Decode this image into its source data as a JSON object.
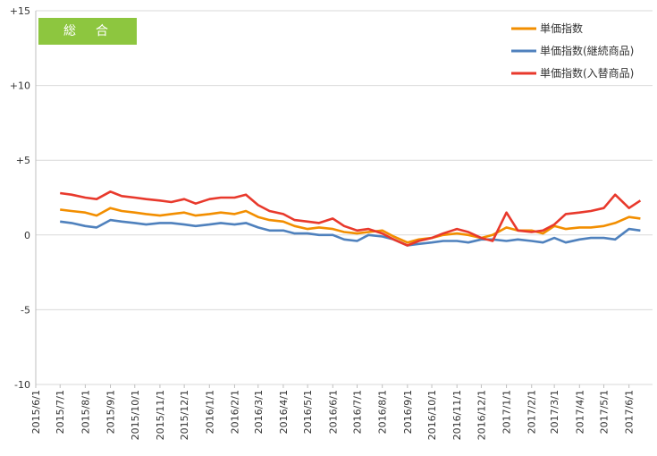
{
  "badge_label": "総　合",
  "chart_data": {
    "type": "line",
    "title": "",
    "xlabel": "",
    "ylabel": "",
    "ylim": [
      -10,
      15
    ],
    "yticks": [
      -10,
      -5,
      0,
      5,
      10,
      15
    ],
    "ytick_labels": [
      "-10",
      "-5",
      "0",
      "+5",
      "+10",
      "+15"
    ],
    "grid": "horizontal",
    "legend_position": "top-right",
    "x_dates": [
      "2015/6/1",
      "2015/7/1",
      "2015/8/1",
      "2015/9/1",
      "2015/10/1",
      "2015/11/1",
      "2015/12/1",
      "2016/1/1",
      "2016/2/1",
      "2016/3/1",
      "2016/4/1",
      "2016/5/1",
      "2016/6/1",
      "2016/7/1",
      "2016/8/1",
      "2016/9/1",
      "2016/10/1",
      "2016/11/1",
      "2016/12/1",
      "2017/1/1",
      "2017/2/1",
      "2017/3/1",
      "2017/4/1",
      "2017/5/1",
      "2017/6/1"
    ],
    "x_tick_labels": [
      "2015/6/1",
      "2015/7/1",
      "2015/8/1",
      "2015/9/1",
      "2015/10/1",
      "2015/11/1",
      "2015/12/1",
      "2016/1/1",
      "2016/2/1",
      "2016/3/1",
      "2016/4/1",
      "2016/5/1",
      "2016/6/1",
      "2016/7/1",
      "2016/8/1",
      "2016/9/1",
      "2016/10/1",
      "2016/11/1",
      "2016/12/1",
      "2017/1/1",
      "2017/2/1",
      "2017/3/1",
      "2017/4/1",
      "2017/5/1",
      "2017/6/1"
    ],
    "series": [
      {
        "name": "単価指数",
        "color": "#f28e00",
        "x": [
          "2015/7/1",
          "2015/7/15",
          "2015/8/1",
          "2015/8/15",
          "2015/9/1",
          "2015/9/15",
          "2015/10/1",
          "2015/10/15",
          "2015/11/1",
          "2015/11/15",
          "2015/12/1",
          "2015/12/15",
          "2016/1/1",
          "2016/1/15",
          "2016/2/1",
          "2016/2/15",
          "2016/3/1",
          "2016/3/15",
          "2016/4/1",
          "2016/4/15",
          "2016/5/1",
          "2016/5/15",
          "2016/6/1",
          "2016/6/15",
          "2016/7/1",
          "2016/7/15",
          "2016/8/1",
          "2016/8/15",
          "2016/9/1",
          "2016/9/15",
          "2016/10/1",
          "2016/10/15",
          "2016/11/1",
          "2016/11/15",
          "2016/12/1",
          "2016/12/15",
          "2017/1/1",
          "2017/1/15",
          "2017/2/1",
          "2017/2/15",
          "2017/3/1",
          "2017/3/15",
          "2017/4/1",
          "2017/4/15",
          "2017/5/1",
          "2017/5/15",
          "2017/6/1",
          "2017/6/15"
        ],
        "values": [
          1.7,
          1.6,
          1.5,
          1.3,
          1.8,
          1.6,
          1.5,
          1.4,
          1.3,
          1.4,
          1.5,
          1.3,
          1.4,
          1.5,
          1.4,
          1.6,
          1.2,
          1.0,
          0.9,
          0.6,
          0.4,
          0.5,
          0.4,
          0.2,
          0.1,
          0.2,
          0.3,
          -0.1,
          -0.5,
          -0.3,
          -0.2,
          0.0,
          0.1,
          0.0,
          -0.2,
          0.0,
          0.5,
          0.3,
          0.3,
          0.1,
          0.6,
          0.4,
          0.5,
          0.5,
          0.6,
          0.8,
          1.2,
          1.1
        ]
      },
      {
        "name": "単価指数(継続商品)",
        "color": "#4f81bd",
        "x": [
          "2015/7/1",
          "2015/7/15",
          "2015/8/1",
          "2015/8/15",
          "2015/9/1",
          "2015/9/15",
          "2015/10/1",
          "2015/10/15",
          "2015/11/1",
          "2015/11/15",
          "2015/12/1",
          "2015/12/15",
          "2016/1/1",
          "2016/1/15",
          "2016/2/1",
          "2016/2/15",
          "2016/3/1",
          "2016/3/15",
          "2016/4/1",
          "2016/4/15",
          "2016/5/1",
          "2016/5/15",
          "2016/6/1",
          "2016/6/15",
          "2016/7/1",
          "2016/7/15",
          "2016/8/1",
          "2016/8/15",
          "2016/9/1",
          "2016/9/15",
          "2016/10/1",
          "2016/10/15",
          "2016/11/1",
          "2016/11/15",
          "2016/12/1",
          "2016/12/15",
          "2017/1/1",
          "2017/1/15",
          "2017/2/1",
          "2017/2/15",
          "2017/3/1",
          "2017/3/15",
          "2017/4/1",
          "2017/4/15",
          "2017/5/1",
          "2017/5/15",
          "2017/6/1",
          "2017/6/15"
        ],
        "values": [
          0.9,
          0.8,
          0.6,
          0.5,
          1.0,
          0.9,
          0.8,
          0.7,
          0.8,
          0.8,
          0.7,
          0.6,
          0.7,
          0.8,
          0.7,
          0.8,
          0.5,
          0.3,
          0.3,
          0.1,
          0.1,
          0.0,
          0.0,
          -0.3,
          -0.4,
          0.0,
          -0.1,
          -0.3,
          -0.7,
          -0.6,
          -0.5,
          -0.4,
          -0.4,
          -0.5,
          -0.3,
          -0.3,
          -0.4,
          -0.3,
          -0.4,
          -0.5,
          -0.2,
          -0.5,
          -0.3,
          -0.2,
          -0.2,
          -0.3,
          0.4,
          0.3
        ]
      },
      {
        "name": "単価指数(入替商品)",
        "color": "#e8392c",
        "x": [
          "2015/7/1",
          "2015/7/15",
          "2015/8/1",
          "2015/8/15",
          "2015/9/1",
          "2015/9/15",
          "2015/10/1",
          "2015/10/15",
          "2015/11/1",
          "2015/11/15",
          "2015/12/1",
          "2015/12/15",
          "2016/1/1",
          "2016/1/15",
          "2016/2/1",
          "2016/2/15",
          "2016/3/1",
          "2016/3/15",
          "2016/4/1",
          "2016/4/15",
          "2016/5/1",
          "2016/5/15",
          "2016/6/1",
          "2016/6/15",
          "2016/7/1",
          "2016/7/15",
          "2016/8/1",
          "2016/8/15",
          "2016/9/1",
          "2016/9/15",
          "2016/10/1",
          "2016/10/15",
          "2016/11/1",
          "2016/11/15",
          "2016/12/1",
          "2016/12/15",
          "2017/1/1",
          "2017/1/15",
          "2017/2/1",
          "2017/2/15",
          "2017/3/1",
          "2017/3/15",
          "2017/4/1",
          "2017/4/15",
          "2017/5/1",
          "2017/5/15",
          "2017/6/1",
          "2017/6/15"
        ],
        "values": [
          2.8,
          2.7,
          2.5,
          2.4,
          2.9,
          2.6,
          2.5,
          2.4,
          2.3,
          2.2,
          2.4,
          2.1,
          2.4,
          2.5,
          2.5,
          2.7,
          2.0,
          1.6,
          1.4,
          1.0,
          0.9,
          0.8,
          1.1,
          0.6,
          0.3,
          0.4,
          0.1,
          -0.3,
          -0.7,
          -0.4,
          -0.2,
          0.1,
          0.4,
          0.2,
          -0.2,
          -0.4,
          1.5,
          0.3,
          0.2,
          0.3,
          0.7,
          1.4,
          1.5,
          1.6,
          1.8,
          2.7,
          1.8,
          2.3
        ]
      }
    ]
  }
}
